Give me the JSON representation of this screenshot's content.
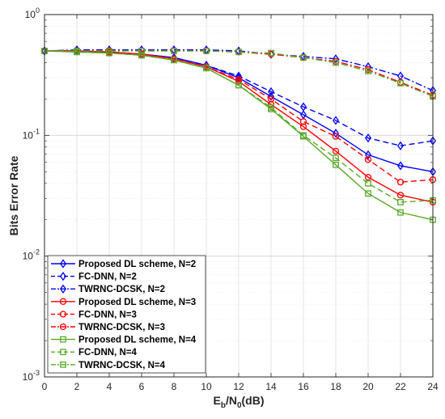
{
  "chart_data": {
    "type": "line",
    "xlabel": {
      "main": "E",
      "sub1": "b",
      "mid": "/N",
      "sub2": "0",
      "end": "(dB)"
    },
    "ylabel": "Bits Error Rate",
    "yscale": "log",
    "xlim": [
      0,
      24
    ],
    "ylim": [
      0.001,
      1
    ],
    "grid": true,
    "legend_position": "bottom-left",
    "x_ticks": [
      "0",
      "2",
      "4",
      "6",
      "8",
      "10",
      "12",
      "14",
      "16",
      "18",
      "20",
      "22",
      "24"
    ],
    "y_ticks": [
      {
        "base": "10",
        "exp": "0"
      },
      {
        "base": "10",
        "exp": "-1"
      },
      {
        "base": "10",
        "exp": "-2"
      },
      {
        "base": "10",
        "exp": "-3"
      }
    ],
    "x": [
      0,
      2,
      4,
      6,
      8,
      10,
      12,
      14,
      16,
      18,
      20,
      22,
      24
    ],
    "series": [
      {
        "name": "Proposed DL scheme, N=2",
        "color": "#0000ff",
        "dash": "solid",
        "marker": "diamond",
        "values": [
          0.5,
          0.5,
          0.49,
          0.47,
          0.44,
          0.38,
          0.3,
          0.21,
          0.148,
          0.104,
          0.069,
          0.056,
          0.05
        ]
      },
      {
        "name": "FC-DNN, N=2",
        "color": "#0000ff",
        "dash": "dashed",
        "marker": "diamond",
        "values": [
          0.5,
          0.5,
          0.49,
          0.47,
          0.44,
          0.38,
          0.31,
          0.23,
          0.172,
          0.133,
          0.095,
          0.082,
          0.09
        ]
      },
      {
        "name": "TWRNC-DCSK, N=2",
        "color": "#0000ff",
        "dash": "dashdot",
        "marker": "diamond",
        "values": [
          0.5,
          0.51,
          0.51,
          0.51,
          0.51,
          0.51,
          0.5,
          0.47,
          0.45,
          0.43,
          0.37,
          0.31,
          0.235
        ]
      },
      {
        "name": "Proposed DL scheme, N=3",
        "color": "#ff0000",
        "dash": "solid",
        "marker": "circle",
        "values": [
          0.5,
          0.5,
          0.49,
          0.47,
          0.43,
          0.37,
          0.28,
          0.18,
          0.118,
          0.074,
          0.045,
          0.032,
          0.028
        ]
      },
      {
        "name": "FC-DNN, N=3",
        "color": "#ff0000",
        "dash": "dashed",
        "marker": "circle",
        "values": [
          0.5,
          0.5,
          0.49,
          0.47,
          0.43,
          0.37,
          0.29,
          0.2,
          0.13,
          0.098,
          0.063,
          0.041,
          0.043
        ]
      },
      {
        "name": "TWRNC-DCSK, N=3",
        "color": "#ff0000",
        "dash": "dashdot",
        "marker": "circle",
        "values": [
          0.5,
          0.5,
          0.5,
          0.5,
          0.5,
          0.5,
          0.49,
          0.47,
          0.44,
          0.41,
          0.35,
          0.275,
          0.215
        ]
      },
      {
        "name": "Proposed DL scheme, N=4",
        "color": "#5aaa28",
        "dash": "solid",
        "marker": "square",
        "values": [
          0.5,
          0.49,
          0.48,
          0.46,
          0.42,
          0.36,
          0.26,
          0.165,
          0.098,
          0.057,
          0.033,
          0.023,
          0.02
        ]
      },
      {
        "name": "FC-DNN, N=4",
        "color": "#5aaa28",
        "dash": "dashed",
        "marker": "square",
        "values": [
          0.5,
          0.49,
          0.48,
          0.46,
          0.42,
          0.36,
          0.26,
          0.17,
          0.1,
          0.065,
          0.04,
          0.028,
          0.029
        ]
      },
      {
        "name": "TWRNC-DCSK, N=4",
        "color": "#5aaa28",
        "dash": "dashdot",
        "marker": "square",
        "values": [
          0.5,
          0.5,
          0.5,
          0.5,
          0.5,
          0.5,
          0.49,
          0.48,
          0.44,
          0.4,
          0.34,
          0.27,
          0.21
        ]
      }
    ]
  }
}
